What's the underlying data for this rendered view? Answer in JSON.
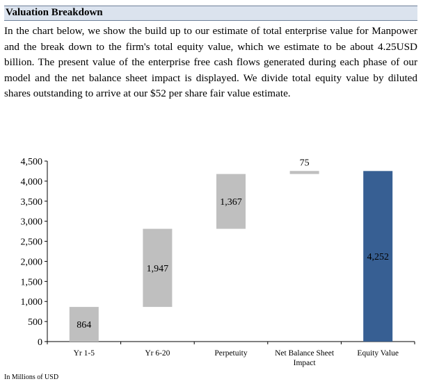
{
  "section": {
    "title": "Valuation Breakdown",
    "body": "In the chart below, we show the build up to our estimate of total enterprise value for Manpower and the break down to the firm's total equity value, which we estimate to be about 4.25USD billion. The present value of the enterprise free cash flows generated during each phase of our model and the net balance sheet impact is displayed. We divide total equity value by diluted shares outstanding to arrive at our $52 per share fair value estimate."
  },
  "footnote": "In Millions of USD",
  "chart_data": {
    "type": "bar",
    "subtype": "waterfall",
    "categories": [
      "Yr 1-5",
      "Yr 6-20",
      "Perpetuity",
      "Net Balance Sheet Impact",
      "Equity Value"
    ],
    "bars": [
      {
        "category": "Yr 1-5",
        "start": 0,
        "end": 864,
        "label": "864",
        "color": "#bfbfbf"
      },
      {
        "category": "Yr 6-20",
        "start": 864,
        "end": 2811,
        "label": "1,947",
        "color": "#bfbfbf"
      },
      {
        "category": "Perpetuity",
        "start": 2811,
        "end": 4178,
        "label": "1,367",
        "color": "#bfbfbf"
      },
      {
        "category": "Net Balance Sheet Impact",
        "start": 4178,
        "end": 4253,
        "label": "75",
        "color": "#bfbfbf"
      },
      {
        "category": "Equity Value",
        "start": 0,
        "end": 4252,
        "label": "4,252",
        "color": "#375f93"
      }
    ],
    "yticks": [
      "0",
      "500",
      "1,000",
      "1,500",
      "2,000",
      "2,500",
      "3,000",
      "3,500",
      "4,000",
      "4,500"
    ],
    "ylim": [
      0,
      4500
    ],
    "grid": false,
    "legend": "none"
  }
}
